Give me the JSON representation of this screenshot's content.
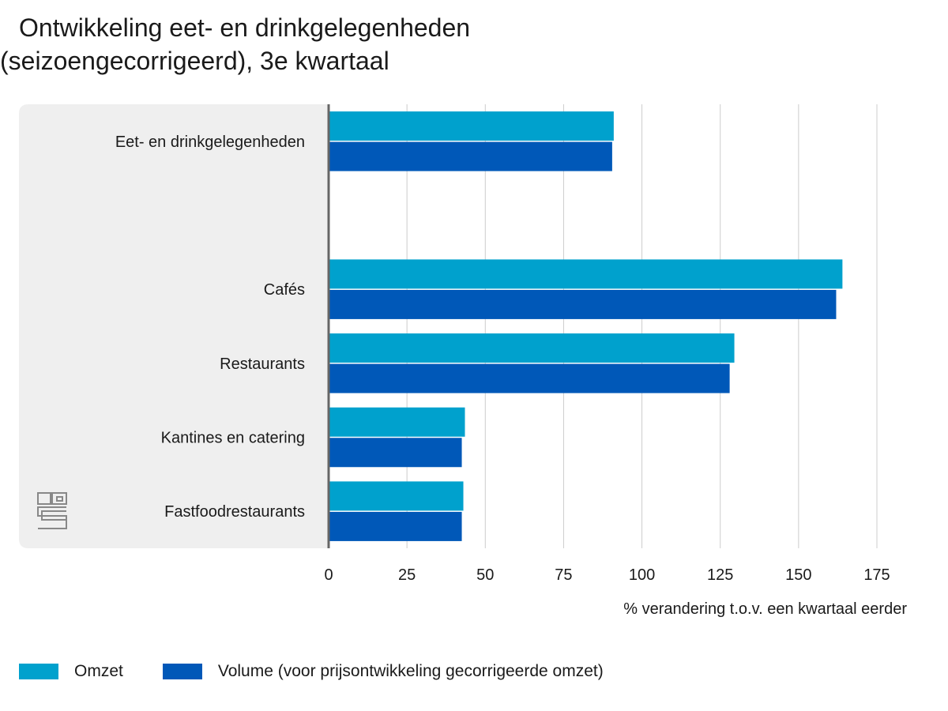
{
  "title_line1": "Ontwikkeling eet- en drinkgelegenheden",
  "title_line2": "(seizoengecorrigeerd), 3e kwartaal",
  "colors": {
    "omzet": "#00a1cd",
    "volume": "#0058b8",
    "panel": "#efefef",
    "grid": "#cccccc",
    "axis": "#666666",
    "logo": "#888888"
  },
  "icons": {
    "logo": "cbs-logo-icon"
  },
  "chart_data": {
    "type": "bar",
    "orientation": "horizontal",
    "categories": [
      "Eet- en drinkgelegenheden",
      "",
      "Cafés",
      "Restaurants",
      "Kantines en catering",
      "Fastfoodrestaurants"
    ],
    "series": [
      {
        "name": "Omzet",
        "values": [
          91,
          null,
          164,
          129.5,
          43.5,
          43
        ]
      },
      {
        "name": "Volume (voor prijsontwikkeling gecorrigeerde omzet)",
        "values": [
          90.5,
          null,
          162,
          128,
          42.5,
          42.5
        ]
      }
    ],
    "xlabel": "% verandering t.o.v. een kwartaal eerder",
    "xlim": [
      0,
      175
    ],
    "ticks": [
      0,
      25,
      50,
      75,
      100,
      125,
      150,
      175
    ],
    "grid": true,
    "legend_position": "bottom-left"
  }
}
